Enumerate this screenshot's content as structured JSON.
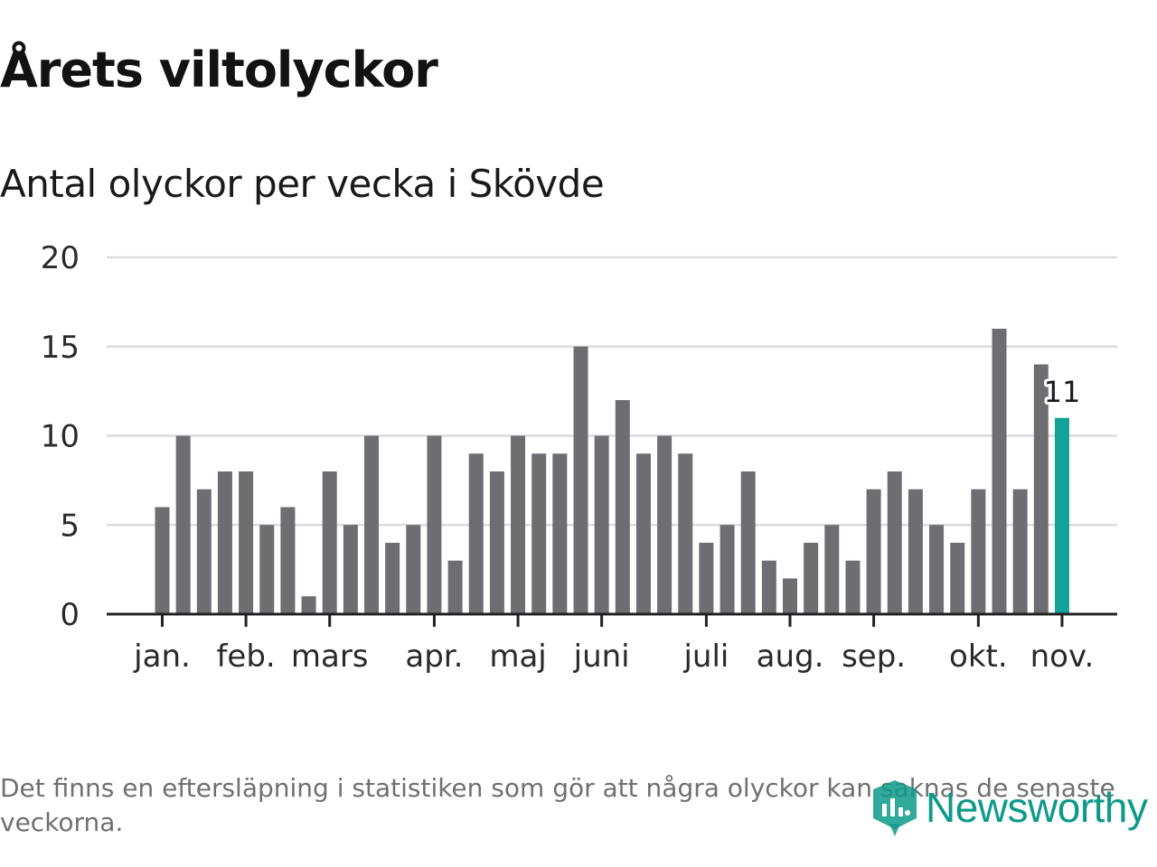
{
  "header": {
    "title": "Årets viltolyckor",
    "subtitle": "Antal olyckor per vecka i Skövde"
  },
  "footnote": "Det finns en eftersläpning i statistiken som gör att några olyckor kan saknas de senaste veckorna.",
  "logo": {
    "text": "Newsworthy",
    "icon": "newsworthy-logo-icon"
  },
  "colors": {
    "bar": "#6e6d72",
    "highlight": "#14a199",
    "grid": "#dcdcdc",
    "axis": "#222222",
    "brand": "#0d9a8a"
  },
  "chart_data": {
    "type": "bar",
    "title": "Antal olyckor per vecka i Skövde",
    "xlabel": "",
    "ylabel": "",
    "ylim": [
      0,
      20
    ],
    "yticks": [
      0,
      5,
      10,
      15,
      20
    ],
    "grid": true,
    "series": [
      {
        "name": "Antal olyckor",
        "values": [
          6,
          10,
          7,
          8,
          8,
          5,
          6,
          1,
          8,
          5,
          10,
          4,
          5,
          10,
          3,
          9,
          8,
          10,
          9,
          9,
          15,
          10,
          12,
          9,
          10,
          9,
          4,
          5,
          8,
          3,
          2,
          4,
          5,
          3,
          7,
          8,
          7,
          5,
          4,
          7,
          16,
          7,
          14,
          11
        ]
      }
    ],
    "highlight_index": 43,
    "highlight_label": "11",
    "month_labels": [
      {
        "label": "jan.",
        "week_index": 0
      },
      {
        "label": "feb.",
        "week_index": 4
      },
      {
        "label": "mars",
        "week_index": 8
      },
      {
        "label": "apr.",
        "week_index": 13
      },
      {
        "label": "maj",
        "week_index": 17
      },
      {
        "label": "juni",
        "week_index": 21
      },
      {
        "label": "juli",
        "week_index": 26
      },
      {
        "label": "aug.",
        "week_index": 30
      },
      {
        "label": "sep.",
        "week_index": 34
      },
      {
        "label": "okt.",
        "week_index": 39
      },
      {
        "label": "nov.",
        "week_index": 43
      }
    ]
  }
}
